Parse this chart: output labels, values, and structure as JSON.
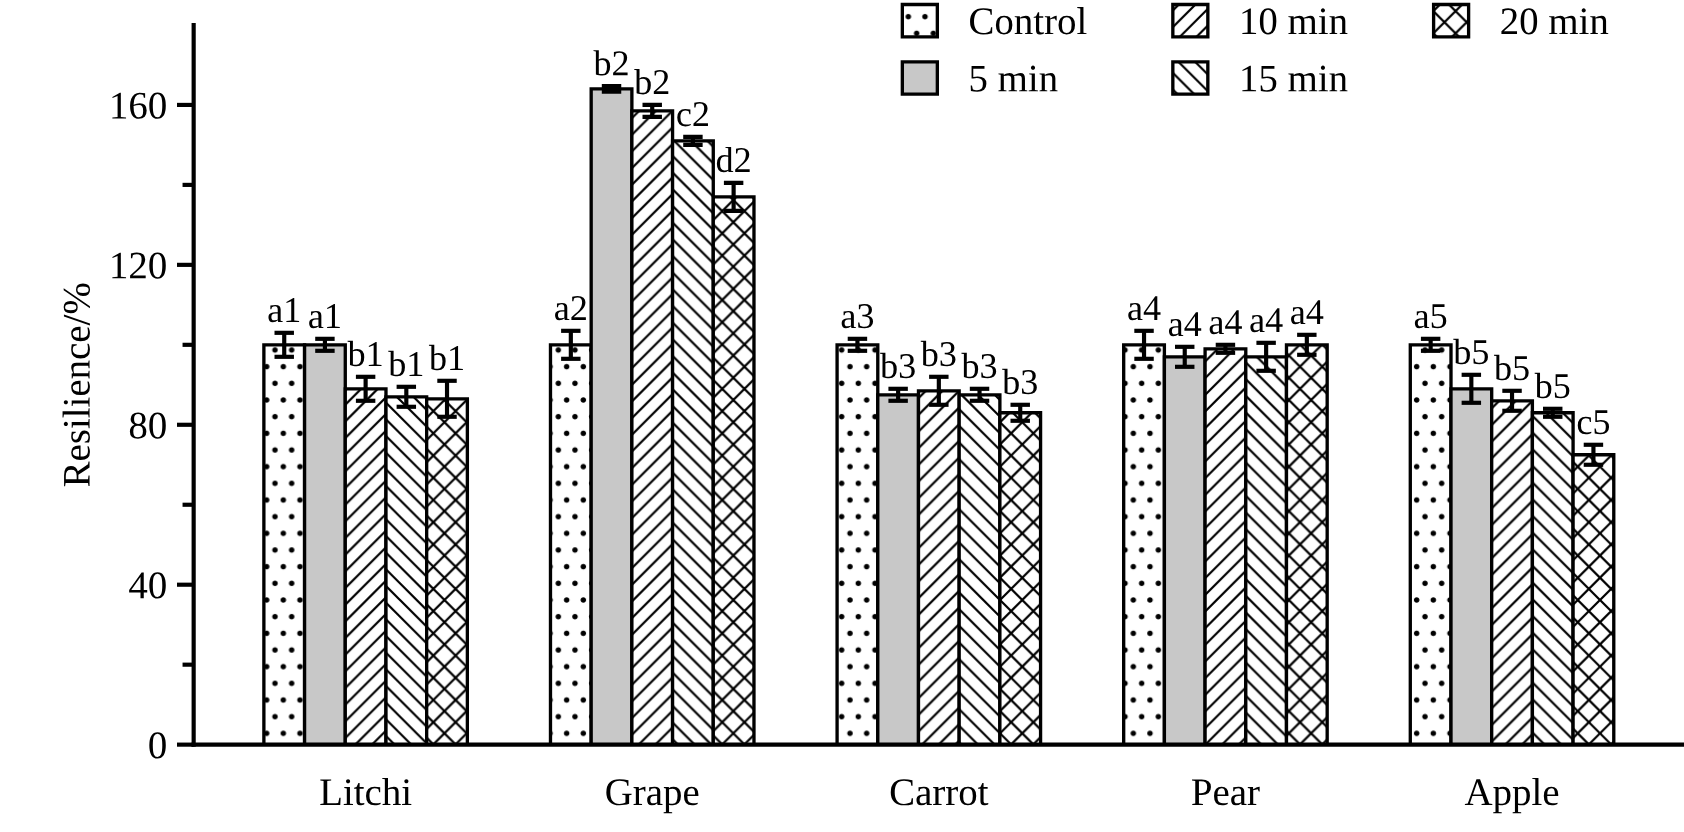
{
  "chart_data": {
    "type": "bar",
    "ylabel": "Resilience/%",
    "categories": [
      "Litchi",
      "Grape",
      "Carrot",
      "Pear",
      "Apple"
    ],
    "series": [
      {
        "name": "Control",
        "color": "#000000",
        "values": [
          100,
          100,
          100,
          100,
          100
        ],
        "errors": [
          3,
          3.5,
          1.5,
          3.5,
          1.5
        ],
        "value_labels": [
          "a1",
          "a2",
          "a3",
          "a4",
          "a5"
        ]
      },
      {
        "name": "5 min",
        "color": "#c8c8c8",
        "values": [
          100,
          164,
          87.5,
          97,
          89
        ],
        "errors": [
          1.5,
          0.7,
          1.5,
          2.5,
          3.5
        ],
        "value_labels": [
          "a1",
          "b2",
          "b3",
          "a4",
          "b5"
        ]
      },
      {
        "name": "10 min",
        "color": "#000000",
        "values": [
          89,
          158.5,
          88.5,
          99,
          86
        ],
        "errors": [
          3,
          1.5,
          3.5,
          1,
          2.5
        ],
        "value_labels": [
          "b1",
          "b2",
          "b3",
          "a4",
          "b5"
        ]
      },
      {
        "name": "15 min",
        "color": "#000000",
        "values": [
          87,
          151,
          87.5,
          97,
          83
        ],
        "errors": [
          2.5,
          1,
          1.5,
          3.5,
          1
        ],
        "value_labels": [
          "b1",
          "c2",
          "b3",
          "a4",
          "b5"
        ]
      },
      {
        "name": "20 min",
        "color": "#000000",
        "values": [
          86.5,
          137,
          83,
          100,
          72.5
        ],
        "errors": [
          4.5,
          3.5,
          2,
          2.5,
          2.5
        ],
        "value_labels": [
          "b1",
          "d2",
          "b3",
          "a4",
          "c5"
        ]
      }
    ],
    "ylim": [
      0,
      180
    ],
    "yticks": [
      0,
      {
        "value": 20,
        "label": null
      },
      40,
      {
        "value": 60,
        "label": null
      },
      80,
      {
        "value": 100,
        "label": null
      },
      120,
      {
        "value": 140,
        "label": null
      },
      160
    ],
    "legend": "top right",
    "tick_labels": "y"
  }
}
